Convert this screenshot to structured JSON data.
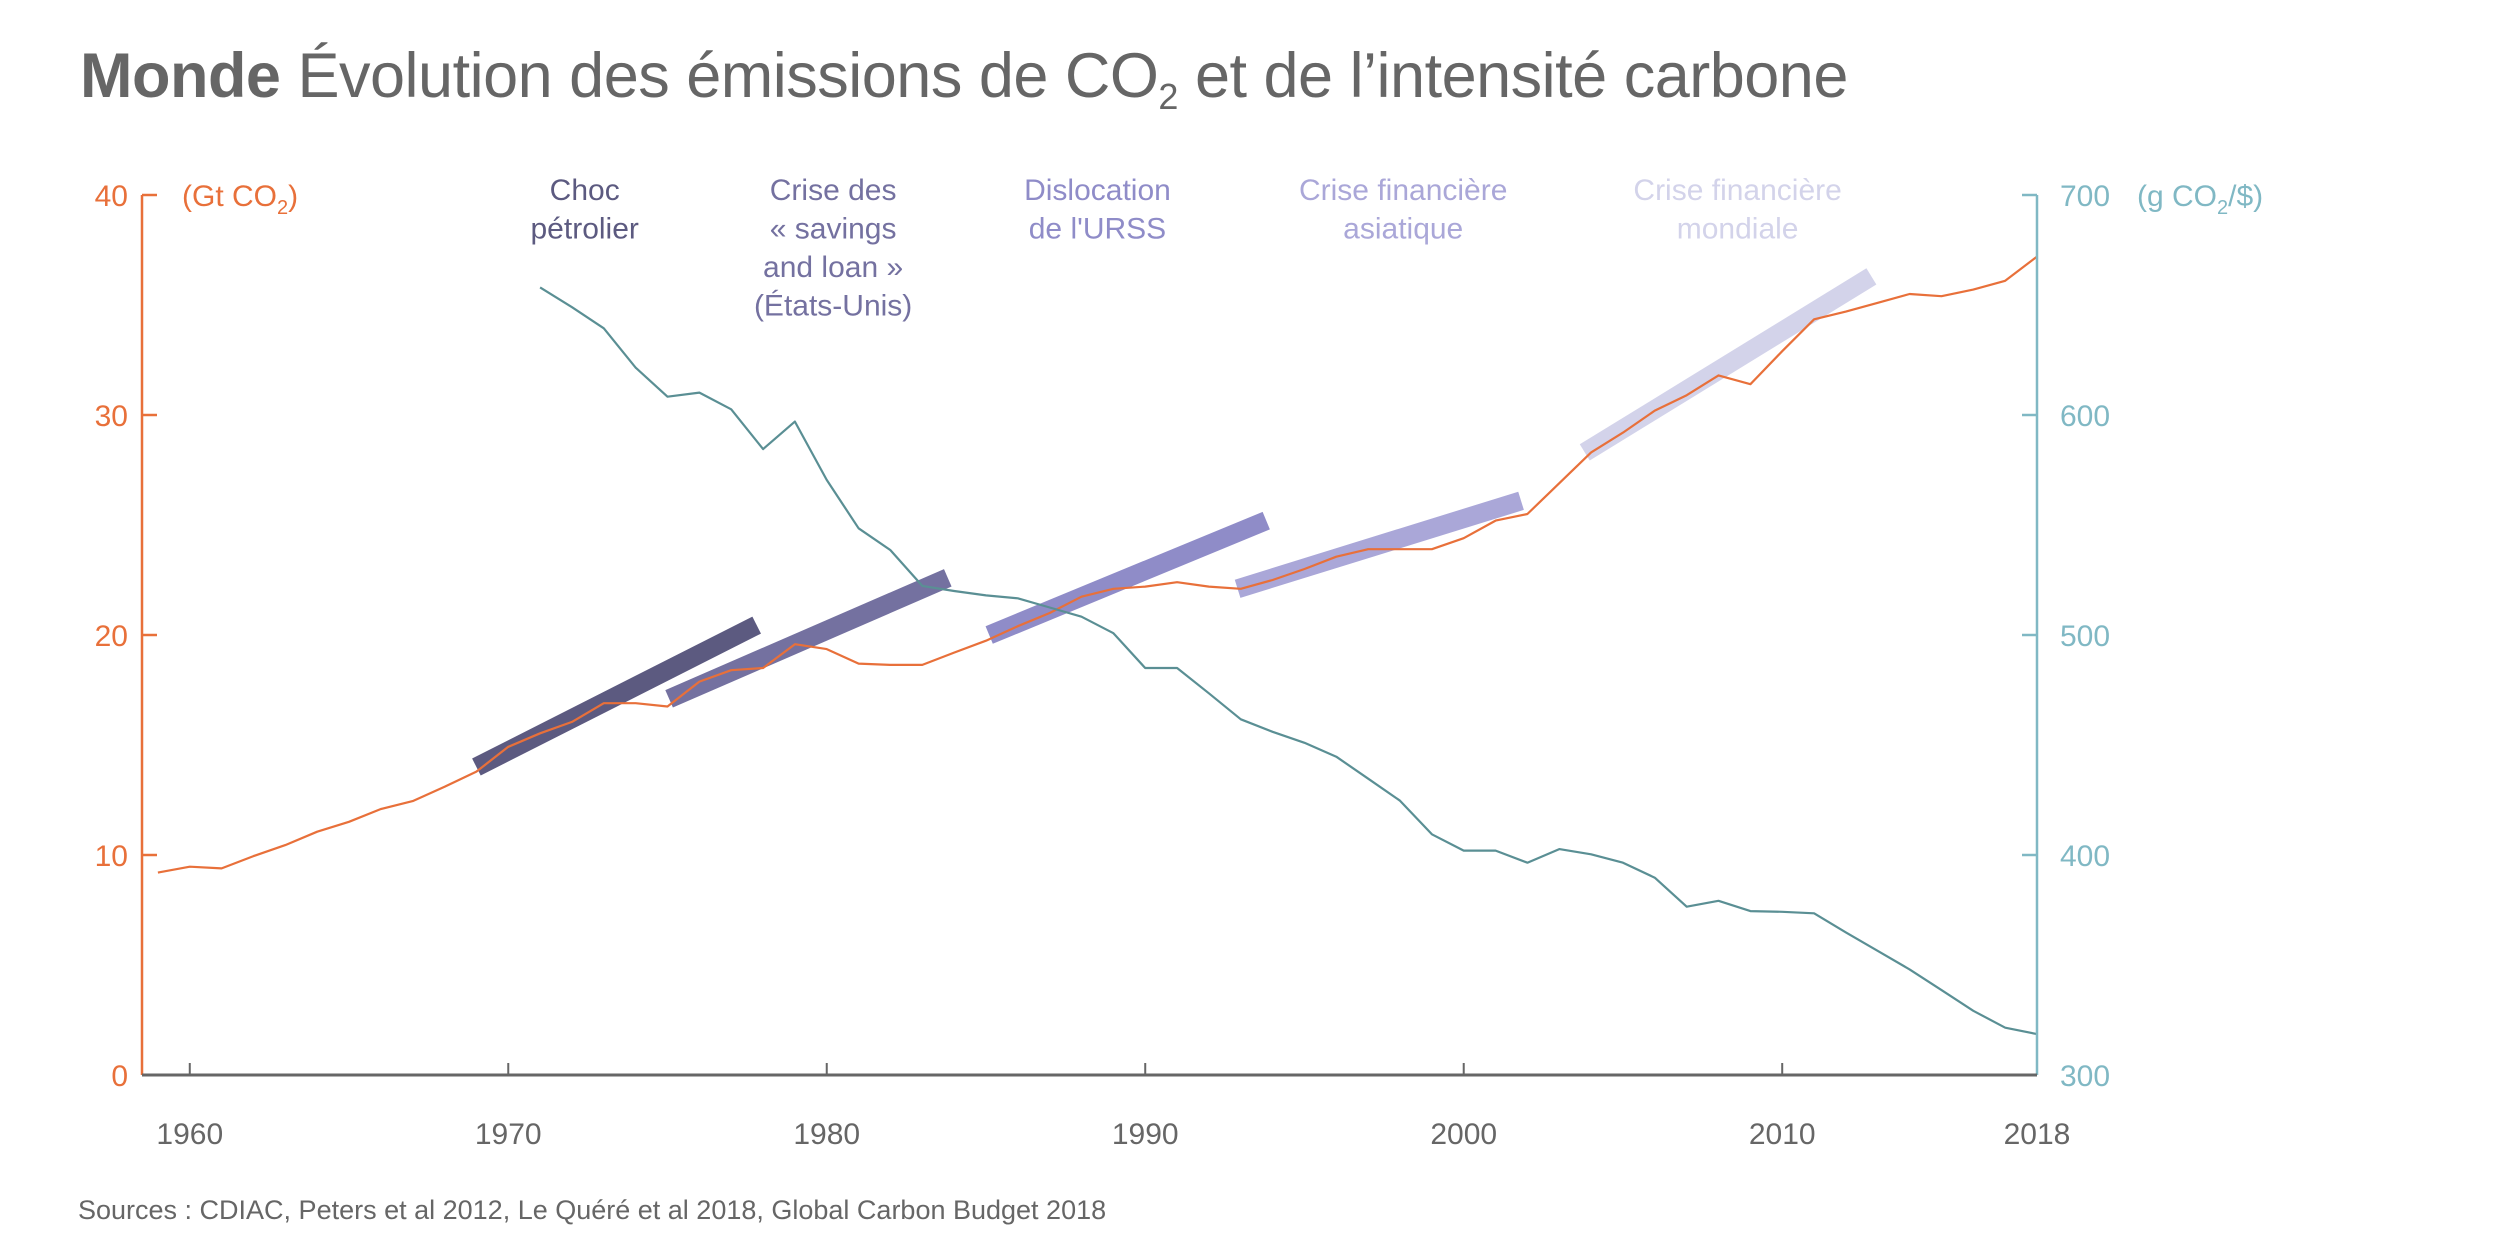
{
  "title": {
    "bold": "Monde",
    "main_before_sub": "Évolution des émissions de CO",
    "sub": "2",
    "main_after_sub": " et de l’intensité carbone"
  },
  "sources": "Sources : CDIAC, Peters et al 2012, Le Quéré et al 2018,  Global Carbon Budget 2018",
  "colors": {
    "emissions": "#e8703a",
    "intensity": "#5a8f94",
    "intensity_axis": "#80b8c4",
    "x_axis": "#666666",
    "text": "#666666"
  },
  "chart_data": {
    "type": "line",
    "title": "Monde Évolution des émissions de CO2 et de l’intensité carbone",
    "xlabel": "",
    "x_range": [
      1958.5,
      2018
    ],
    "x_ticks": [
      1960,
      1970,
      1980,
      1990,
      2000,
      2010,
      2018
    ],
    "x_tick_labels": [
      "1960",
      "1970",
      "1980",
      "1990",
      "2000",
      "2010",
      "2018"
    ],
    "y_left": {
      "label_pre": "(Gt CO",
      "label_sub": "2",
      "label_post": ")",
      "range": [
        0,
        40
      ],
      "ticks": [
        0,
        10,
        20,
        30,
        40
      ],
      "tick_labels": [
        "0",
        "10",
        "20",
        "30",
        "40"
      ]
    },
    "y_right": {
      "label_pre": "(g CO",
      "label_sub": "2",
      "label_post": "/$)",
      "range": [
        300,
        700
      ],
      "ticks": [
        300,
        400,
        500,
        600,
        700
      ],
      "tick_labels": [
        "300",
        "400",
        "500",
        "600",
        "700"
      ]
    },
    "grid": false,
    "legend": "none",
    "series": [
      {
        "name": "Émissions de CO2 (Gt CO2)",
        "axis": "left",
        "x": [
          1959,
          1960,
          1961,
          1962,
          1963,
          1964,
          1965,
          1966,
          1967,
          1968,
          1969,
          1970,
          1971,
          1972,
          1973,
          1974,
          1975,
          1976,
          1977,
          1978,
          1979,
          1980,
          1981,
          1982,
          1983,
          1984,
          1985,
          1986,
          1987,
          1988,
          1989,
          1990,
          1991,
          1992,
          1993,
          1994,
          1995,
          1996,
          1997,
          1998,
          1999,
          2000,
          2001,
          2002,
          2003,
          2004,
          2005,
          2006,
          2007,
          2008,
          2009,
          2010,
          2011,
          2012,
          2013,
          2014,
          2015,
          2016,
          2017,
          2018
        ],
        "values": [
          9.2,
          9.47,
          9.39,
          9.95,
          10.45,
          11.06,
          11.51,
          12.09,
          12.45,
          13.1,
          13.79,
          14.92,
          15.53,
          16.05,
          16.9,
          16.9,
          16.75,
          17.88,
          18.4,
          18.5,
          19.58,
          19.36,
          18.7,
          18.64,
          18.64,
          19.2,
          19.74,
          20.4,
          21.0,
          21.74,
          22.1,
          22.2,
          22.4,
          22.2,
          22.1,
          22.5,
          23.0,
          23.56,
          23.9,
          23.9,
          23.9,
          24.4,
          25.2,
          25.5,
          26.9,
          28.3,
          29.2,
          30.2,
          30.9,
          31.8,
          31.4,
          32.9,
          34.35,
          34.7,
          35.1,
          35.5,
          35.4,
          35.7,
          36.1,
          37.2
        ]
      },
      {
        "name": "Intensité carbone (g CO2/$)",
        "axis": "right",
        "x": [
          1971,
          1972,
          1973,
          1974,
          1975,
          1976,
          1977,
          1978,
          1979,
          1980,
          1981,
          1982,
          1983,
          1984,
          1985,
          1986,
          1987,
          1988,
          1989,
          1990,
          1991,
          1992,
          1993,
          1994,
          1995,
          1996,
          1997,
          1998,
          1999,
          2000,
          2001,
          2002,
          2003,
          2004,
          2005,
          2006,
          2007,
          2008,
          2009,
          2010,
          2011,
          2012,
          2013,
          2014,
          2015,
          2016,
          2017,
          2018
        ],
        "values": [
          658,
          649,
          639.4,
          621.5,
          608.3,
          610.2,
          602.6,
          584.5,
          597,
          570.5,
          548.5,
          538.6,
          522.3,
          520,
          518,
          516.7,
          512.5,
          508.3,
          500.8,
          485,
          485,
          473.5,
          461.7,
          456,
          451,
          444.7,
          434.7,
          424.7,
          409.4,
          402,
          402,
          396.5,
          402.7,
          400.3,
          396.5,
          389.7,
          376.5,
          379.2,
          374.5,
          374.2,
          373.5,
          364.8,
          356.4,
          348,
          338.6,
          329.2,
          321.5,
          318.6
        ]
      }
    ],
    "annotations": [
      {
        "lines": [
          "Choc",
          "pétrolier"
        ],
        "color": "#5c5a80",
        "label_year": 1972.4,
        "start": [
          1969.0,
          14.0
        ],
        "end": [
          1977.8,
          20.45
        ]
      },
      {
        "lines": [
          "Crise des",
          "« savings",
          "and loan »",
          "(États-Unis)"
        ],
        "color": "#7471a0",
        "label_year": 1980.2,
        "start": [
          1975.05,
          17.1
        ],
        "end": [
          1983.8,
          22.6
        ]
      },
      {
        "lines": [
          "Dislocation",
          "de l'URSS"
        ],
        "color": "#8f8cc8",
        "label_year": 1988.5,
        "start": [
          1985.1,
          20.0
        ],
        "end": [
          1993.8,
          25.2
        ]
      },
      {
        "lines": [
          "Crise financière",
          "asiatique"
        ],
        "color": "#aaa7d8",
        "label_year": 1998.1,
        "start": [
          1992.9,
          22.1
        ],
        "end": [
          2001.8,
          26.1
        ]
      },
      {
        "lines": [
          "Crise financière",
          "mondiale"
        ],
        "color": "#d3d3ea",
        "label_year": 2008.6,
        "start": [
          2003.8,
          28.3
        ],
        "end": [
          2012.8,
          36.3
        ]
      }
    ]
  }
}
